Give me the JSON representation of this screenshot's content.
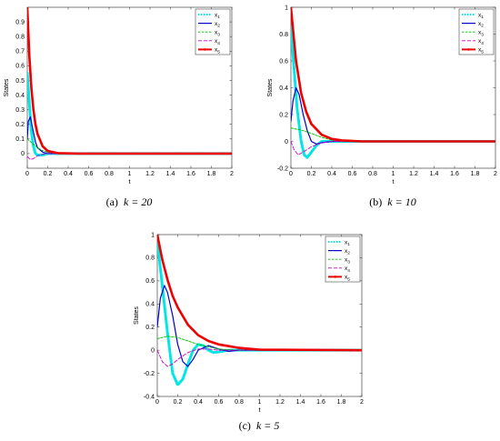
{
  "chart_data": [
    {
      "type": "line",
      "caption_label": "(a)",
      "caption_k": "k = 20",
      "xlabel": "t",
      "ylabel": "States",
      "xlim": [
        0,
        2
      ],
      "ylim": [
        -0.1,
        1.0
      ],
      "xticks": [
        "0",
        "0.2",
        "0.4",
        "0.6",
        "0.8",
        "1",
        "1.2",
        "1.4",
        "1.6",
        "1.8",
        "2"
      ],
      "yticks": [
        "0",
        "0.1",
        "0.2",
        "0.3",
        "0.4",
        "0.5",
        "0.6",
        "0.7",
        "0.8",
        "0.9"
      ],
      "ytick_values": [
        0,
        0.1,
        0.2,
        0.3,
        0.4,
        0.5,
        0.6,
        0.7,
        0.8,
        0.9
      ],
      "legend": "top-right",
      "series": [
        {
          "name": "x1",
          "color": "#00e6e6",
          "style": "dotted-thick",
          "x": [
            0,
            0.02,
            0.04,
            0.06,
            0.08,
            0.1,
            0.15,
            0.2,
            0.3,
            2
          ],
          "y": [
            0.55,
            0.35,
            0.15,
            0.05,
            0.0,
            -0.01,
            -0.01,
            0.0,
            0.0,
            0.0
          ]
        },
        {
          "name": "x2",
          "color": "#0000cc",
          "style": "solid",
          "x": [
            0,
            0.01,
            0.03,
            0.05,
            0.08,
            0.1,
            0.15,
            0.2,
            0.3,
            2
          ],
          "y": [
            0.1,
            0.22,
            0.25,
            0.18,
            0.08,
            0.04,
            0.01,
            0.0,
            0.0,
            0.0
          ]
        },
        {
          "name": "x3",
          "color": "#00bb00",
          "style": "dash",
          "x": [
            0,
            0.05,
            0.1,
            0.15,
            0.2,
            0.3,
            2
          ],
          "y": [
            0.1,
            0.07,
            0.04,
            0.02,
            0.01,
            0.0,
            0.0
          ]
        },
        {
          "name": "x4",
          "color": "#cc00cc",
          "style": "dashdot",
          "x": [
            0,
            0.03,
            0.06,
            0.1,
            0.15,
            0.2,
            2
          ],
          "y": [
            -0.02,
            -0.04,
            -0.035,
            -0.015,
            -0.005,
            0.0,
            0.0
          ]
        },
        {
          "name": "x5",
          "color": "#ee0000",
          "style": "thick-star",
          "x": [
            0,
            0.02,
            0.04,
            0.06,
            0.08,
            0.1,
            0.15,
            0.2,
            0.3,
            0.5,
            2
          ],
          "y": [
            1.0,
            0.67,
            0.45,
            0.3,
            0.2,
            0.135,
            0.05,
            0.018,
            0.003,
            0.0,
            0.0
          ]
        }
      ]
    },
    {
      "type": "line",
      "caption_label": "(b)",
      "caption_k": "k = 10",
      "xlabel": "t",
      "ylabel": "States",
      "xlim": [
        0,
        2
      ],
      "ylim": [
        -0.2,
        1.0
      ],
      "xticks": [
        "0",
        "0.2",
        "0.4",
        "0.6",
        "0.8",
        "1",
        "1.2",
        "1.4",
        "1.6",
        "1.8",
        "2"
      ],
      "yticks": [
        "-0.2",
        "0",
        "0.2",
        "0.4",
        "0.6",
        "0.8",
        "1"
      ],
      "ytick_values": [
        -0.2,
        0,
        0.2,
        0.4,
        0.6,
        0.8,
        1.0
      ],
      "legend": "top-right",
      "series": [
        {
          "name": "x1",
          "color": "#00e6e6",
          "style": "dotted-thick",
          "x": [
            0,
            0.03,
            0.06,
            0.1,
            0.13,
            0.16,
            0.2,
            0.25,
            0.3,
            0.4,
            2
          ],
          "y": [
            0.85,
            0.55,
            0.25,
            0.0,
            -0.1,
            -0.12,
            -0.08,
            -0.03,
            0.0,
            0.0,
            0.0
          ]
        },
        {
          "name": "x2",
          "color": "#0000cc",
          "style": "solid",
          "x": [
            0,
            0.02,
            0.05,
            0.08,
            0.12,
            0.16,
            0.2,
            0.25,
            0.3,
            0.4,
            2
          ],
          "y": [
            0.15,
            0.3,
            0.4,
            0.35,
            0.2,
            0.08,
            0.0,
            -0.02,
            -0.01,
            0.0,
            0.0
          ]
        },
        {
          "name": "x3",
          "color": "#00bb00",
          "style": "dash",
          "x": [
            0,
            0.1,
            0.2,
            0.3,
            0.4,
            0.5,
            2
          ],
          "y": [
            0.1,
            0.085,
            0.06,
            0.03,
            0.01,
            0.0,
            0.0
          ]
        },
        {
          "name": "x4",
          "color": "#cc00cc",
          "style": "dashdot",
          "x": [
            0,
            0.03,
            0.07,
            0.12,
            0.2,
            0.3,
            0.4,
            2
          ],
          "y": [
            0.0,
            -0.06,
            -0.1,
            -0.08,
            -0.04,
            -0.01,
            0.0,
            0.0
          ]
        },
        {
          "name": "x5",
          "color": "#ee0000",
          "style": "thick-star",
          "x": [
            0,
            0.05,
            0.1,
            0.15,
            0.2,
            0.3,
            0.4,
            0.5,
            0.7,
            2
          ],
          "y": [
            1.0,
            0.6,
            0.36,
            0.22,
            0.13,
            0.05,
            0.018,
            0.007,
            0.0,
            0.0
          ]
        }
      ]
    },
    {
      "type": "line",
      "caption_label": "(c)",
      "caption_k": "k = 5",
      "xlabel": "t",
      "ylabel": "States",
      "xlim": [
        0,
        2
      ],
      "ylim": [
        -0.4,
        1.0
      ],
      "xticks": [
        "0",
        "0.2",
        "0.4",
        "0.6",
        "0.8",
        "1",
        "1.2",
        "1.4",
        "1.6",
        "1.8",
        "2"
      ],
      "yticks": [
        "-0.4",
        "-0.2",
        "0",
        "0.2",
        "0.4",
        "0.6",
        "0.8",
        "1"
      ],
      "ytick_values": [
        -0.4,
        -0.2,
        0,
        0.2,
        0.4,
        0.6,
        0.8,
        1.0
      ],
      "legend": "top-right",
      "series": [
        {
          "name": "x1",
          "color": "#00e6e6",
          "style": "dotted-thick",
          "x": [
            0,
            0.05,
            0.1,
            0.15,
            0.2,
            0.25,
            0.3,
            0.35,
            0.4,
            0.45,
            0.5,
            0.55,
            0.6,
            0.7,
            0.8,
            2
          ],
          "y": [
            0.95,
            0.55,
            0.15,
            -0.2,
            -0.3,
            -0.25,
            -0.12,
            0.0,
            0.05,
            0.04,
            0.0,
            -0.02,
            -0.015,
            0.0,
            0.0,
            0.0
          ]
        },
        {
          "name": "x2",
          "color": "#0000cc",
          "style": "solid",
          "x": [
            0,
            0.03,
            0.07,
            0.1,
            0.15,
            0.2,
            0.25,
            0.3,
            0.35,
            0.4,
            0.5,
            0.6,
            0.7,
            0.8,
            2
          ],
          "y": [
            0.2,
            0.45,
            0.56,
            0.5,
            0.3,
            0.05,
            -0.1,
            -0.14,
            -0.08,
            0.0,
            0.04,
            0.01,
            -0.01,
            0.0,
            0.0
          ]
        },
        {
          "name": "x3",
          "color": "#00bb00",
          "style": "dash",
          "x": [
            0,
            0.1,
            0.2,
            0.3,
            0.4,
            0.5,
            0.6,
            0.7,
            0.8,
            1.0,
            2
          ],
          "y": [
            0.1,
            0.12,
            0.11,
            0.08,
            0.05,
            0.03,
            0.01,
            0.005,
            0.0,
            0.0,
            0.0
          ]
        },
        {
          "name": "x4",
          "color": "#cc00cc",
          "style": "dashdot",
          "x": [
            0,
            0.05,
            0.1,
            0.15,
            0.2,
            0.3,
            0.4,
            0.5,
            0.6,
            0.8,
            2
          ],
          "y": [
            0.0,
            -0.1,
            -0.14,
            -0.12,
            -0.08,
            -0.02,
            0.01,
            0.01,
            0.0,
            0.0,
            0.0
          ]
        },
        {
          "name": "x5",
          "color": "#ee0000",
          "style": "thick-star",
          "x": [
            0,
            0.05,
            0.1,
            0.15,
            0.2,
            0.3,
            0.4,
            0.5,
            0.6,
            0.8,
            1.0,
            2
          ],
          "y": [
            1.0,
            0.78,
            0.61,
            0.47,
            0.37,
            0.22,
            0.13,
            0.08,
            0.05,
            0.02,
            0.005,
            0.0
          ]
        }
      ]
    }
  ],
  "legend_labels": [
    "x1",
    "x2",
    "x3",
    "x4",
    "x5"
  ]
}
